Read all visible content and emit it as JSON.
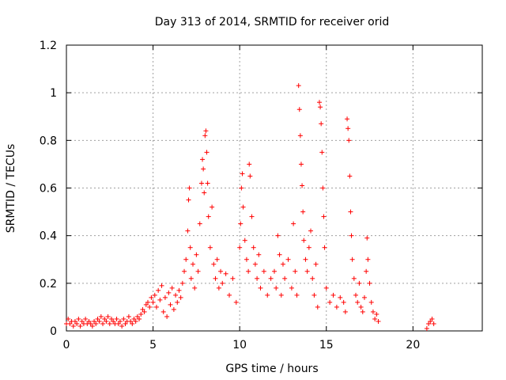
{
  "chart_data": {
    "type": "scatter",
    "title": "Day 313 of 2014, SRMTID for receiver orid",
    "xlabel": "GPS time / hours",
    "ylabel": "SRMTID / TECUs",
    "xlim": [
      0,
      24
    ],
    "ylim": [
      0,
      1.2
    ],
    "x_ticks": [
      0,
      5,
      10,
      15,
      20
    ],
    "x_tick_labels": [
      "0",
      "5",
      "10",
      "15",
      "20"
    ],
    "y_ticks": [
      0,
      0.2,
      0.4,
      0.6,
      0.8,
      1.0,
      1.2
    ],
    "y_tick_labels": [
      "0",
      "0.2",
      "0.4",
      "0.6",
      "0.8",
      "1",
      "1.2"
    ],
    "grid": true,
    "marker": "plus",
    "color": "#ff0000",
    "series": [
      {
        "name": "SRMTID",
        "points": [
          [
            0.0,
            0.03
          ],
          [
            0.1,
            0.05
          ],
          [
            0.2,
            0.03
          ],
          [
            0.3,
            0.04
          ],
          [
            0.4,
            0.02
          ],
          [
            0.5,
            0.04
          ],
          [
            0.6,
            0.03
          ],
          [
            0.7,
            0.05
          ],
          [
            0.8,
            0.02
          ],
          [
            0.9,
            0.04
          ],
          [
            1.0,
            0.03
          ],
          [
            1.1,
            0.05
          ],
          [
            1.2,
            0.03
          ],
          [
            1.3,
            0.04
          ],
          [
            1.4,
            0.03
          ],
          [
            1.5,
            0.02
          ],
          [
            1.6,
            0.04
          ],
          [
            1.7,
            0.03
          ],
          [
            1.8,
            0.05
          ],
          [
            1.9,
            0.04
          ],
          [
            2.0,
            0.06
          ],
          [
            2.1,
            0.03
          ],
          [
            2.2,
            0.05
          ],
          [
            2.3,
            0.04
          ],
          [
            2.4,
            0.06
          ],
          [
            2.5,
            0.03
          ],
          [
            2.6,
            0.05
          ],
          [
            2.7,
            0.04
          ],
          [
            2.8,
            0.03
          ],
          [
            2.9,
            0.05
          ],
          [
            3.0,
            0.03
          ],
          [
            3.1,
            0.04
          ],
          [
            3.2,
            0.02
          ],
          [
            3.3,
            0.05
          ],
          [
            3.4,
            0.03
          ],
          [
            3.5,
            0.04
          ],
          [
            3.6,
            0.06
          ],
          [
            3.7,
            0.04
          ],
          [
            3.8,
            0.03
          ],
          [
            3.9,
            0.05
          ],
          [
            4.0,
            0.04
          ],
          [
            4.1,
            0.06
          ],
          [
            4.2,
            0.05
          ],
          [
            4.3,
            0.07
          ],
          [
            4.4,
            0.09
          ],
          [
            4.5,
            0.08
          ],
          [
            4.6,
            0.11
          ],
          [
            4.7,
            0.12
          ],
          [
            4.8,
            0.1
          ],
          [
            4.9,
            0.14
          ],
          [
            5.0,
            0.12
          ],
          [
            5.1,
            0.15
          ],
          [
            5.2,
            0.1
          ],
          [
            5.3,
            0.17
          ],
          [
            5.4,
            0.13
          ],
          [
            5.5,
            0.19
          ],
          [
            5.6,
            0.08
          ],
          [
            5.7,
            0.14
          ],
          [
            5.8,
            0.06
          ],
          [
            5.9,
            0.16
          ],
          [
            6.0,
            0.11
          ],
          [
            6.1,
            0.18
          ],
          [
            6.2,
            0.09
          ],
          [
            6.3,
            0.15
          ],
          [
            6.4,
            0.12
          ],
          [
            6.5,
            0.17
          ],
          [
            6.6,
            0.14
          ],
          [
            6.7,
            0.2
          ],
          [
            6.8,
            0.25
          ],
          [
            6.9,
            0.3
          ],
          [
            7.0,
            0.42
          ],
          [
            7.05,
            0.55
          ],
          [
            7.1,
            0.6
          ],
          [
            7.15,
            0.35
          ],
          [
            7.2,
            0.22
          ],
          [
            7.3,
            0.28
          ],
          [
            7.4,
            0.18
          ],
          [
            7.5,
            0.32
          ],
          [
            7.6,
            0.25
          ],
          [
            7.7,
            0.45
          ],
          [
            7.8,
            0.62
          ],
          [
            7.85,
            0.72
          ],
          [
            7.9,
            0.68
          ],
          [
            7.95,
            0.58
          ],
          [
            8.0,
            0.82
          ],
          [
            8.05,
            0.84
          ],
          [
            8.1,
            0.75
          ],
          [
            8.15,
            0.62
          ],
          [
            8.2,
            0.48
          ],
          [
            8.3,
            0.35
          ],
          [
            8.4,
            0.52
          ],
          [
            8.5,
            0.28
          ],
          [
            8.6,
            0.22
          ],
          [
            8.7,
            0.3
          ],
          [
            8.8,
            0.18
          ],
          [
            8.9,
            0.25
          ],
          [
            9.0,
            0.2
          ],
          [
            9.2,
            0.24
          ],
          [
            9.4,
            0.15
          ],
          [
            9.6,
            0.22
          ],
          [
            9.8,
            0.12
          ],
          [
            10.0,
            0.35
          ],
          [
            10.05,
            0.45
          ],
          [
            10.1,
            0.6
          ],
          [
            10.15,
            0.66
          ],
          [
            10.2,
            0.52
          ],
          [
            10.3,
            0.38
          ],
          [
            10.4,
            0.3
          ],
          [
            10.5,
            0.25
          ],
          [
            10.55,
            0.7
          ],
          [
            10.6,
            0.65
          ],
          [
            10.7,
            0.48
          ],
          [
            10.8,
            0.35
          ],
          [
            10.9,
            0.28
          ],
          [
            11.0,
            0.22
          ],
          [
            11.1,
            0.32
          ],
          [
            11.2,
            0.18
          ],
          [
            11.4,
            0.25
          ],
          [
            11.6,
            0.15
          ],
          [
            11.8,
            0.22
          ],
          [
            12.0,
            0.25
          ],
          [
            12.1,
            0.18
          ],
          [
            12.2,
            0.4
          ],
          [
            12.3,
            0.32
          ],
          [
            12.4,
            0.15
          ],
          [
            12.5,
            0.28
          ],
          [
            12.6,
            0.22
          ],
          [
            12.8,
            0.3
          ],
          [
            13.0,
            0.18
          ],
          [
            13.1,
            0.45
          ],
          [
            13.2,
            0.25
          ],
          [
            13.3,
            0.15
          ],
          [
            13.4,
            1.03
          ],
          [
            13.45,
            0.93
          ],
          [
            13.5,
            0.82
          ],
          [
            13.55,
            0.7
          ],
          [
            13.6,
            0.61
          ],
          [
            13.65,
            0.5
          ],
          [
            13.7,
            0.38
          ],
          [
            13.8,
            0.3
          ],
          [
            13.9,
            0.25
          ],
          [
            14.0,
            0.35
          ],
          [
            14.1,
            0.42
          ],
          [
            14.2,
            0.22
          ],
          [
            14.3,
            0.15
          ],
          [
            14.4,
            0.28
          ],
          [
            14.5,
            0.1
          ],
          [
            14.6,
            0.96
          ],
          [
            14.65,
            0.94
          ],
          [
            14.7,
            0.87
          ],
          [
            14.75,
            0.75
          ],
          [
            14.8,
            0.6
          ],
          [
            14.85,
            0.48
          ],
          [
            14.9,
            0.35
          ],
          [
            15.0,
            0.18
          ],
          [
            15.2,
            0.12
          ],
          [
            15.4,
            0.15
          ],
          [
            15.6,
            0.1
          ],
          [
            15.8,
            0.14
          ],
          [
            16.0,
            0.12
          ],
          [
            16.1,
            0.08
          ],
          [
            16.2,
            0.89
          ],
          [
            16.25,
            0.85
          ],
          [
            16.3,
            0.8
          ],
          [
            16.35,
            0.65
          ],
          [
            16.4,
            0.5
          ],
          [
            16.45,
            0.4
          ],
          [
            16.5,
            0.3
          ],
          [
            16.6,
            0.22
          ],
          [
            16.7,
            0.15
          ],
          [
            16.8,
            0.12
          ],
          [
            16.9,
            0.2
          ],
          [
            17.0,
            0.1
          ],
          [
            17.1,
            0.08
          ],
          [
            17.2,
            0.14
          ],
          [
            17.3,
            0.25
          ],
          [
            17.35,
            0.39
          ],
          [
            17.4,
            0.3
          ],
          [
            17.5,
            0.2
          ],
          [
            17.6,
            0.12
          ],
          [
            17.7,
            0.08
          ],
          [
            17.8,
            0.05
          ],
          [
            17.9,
            0.07
          ],
          [
            18.0,
            0.04
          ],
          [
            20.8,
            0.01
          ],
          [
            20.9,
            0.03
          ],
          [
            21.0,
            0.04
          ],
          [
            21.1,
            0.05
          ],
          [
            21.2,
            0.03
          ]
        ]
      }
    ]
  }
}
